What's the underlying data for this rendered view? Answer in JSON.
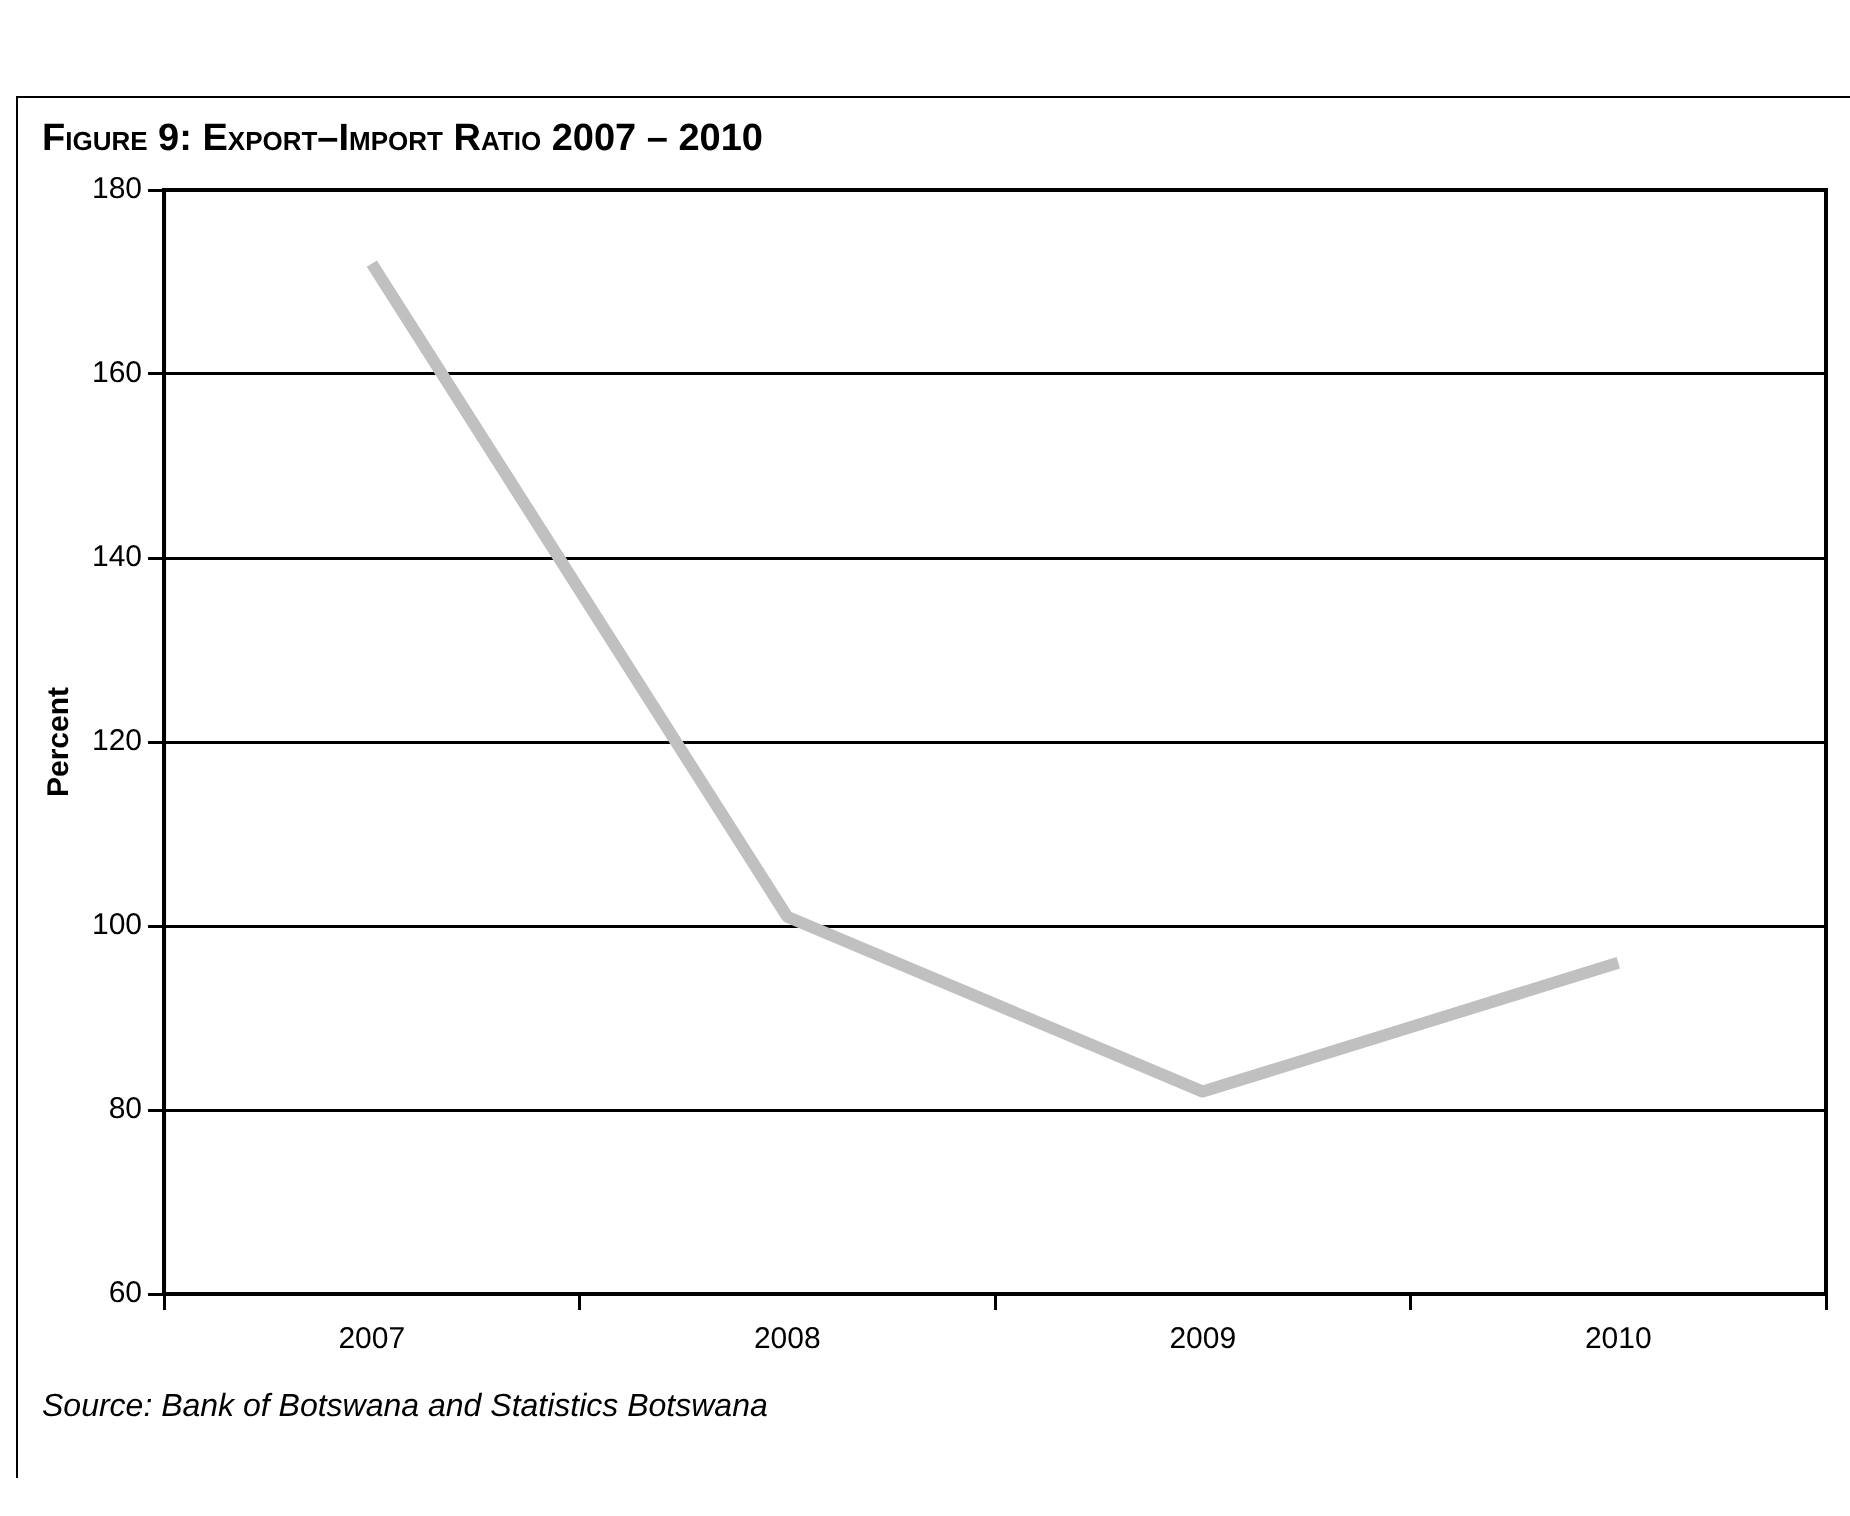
{
  "chart_data": {
    "type": "line",
    "title": "Figure 9: Export–Import Ratio 2007 – 2010",
    "ylabel": "Percent",
    "categories": [
      "2007",
      "2008",
      "2009",
      "2010"
    ],
    "series": [
      {
        "color": "#c0c0c0",
        "values": [
          172,
          101,
          82,
          96
        ]
      }
    ],
    "ylim": [
      60,
      180
    ],
    "yticks": [
      60,
      80,
      100,
      120,
      140,
      160,
      180
    ],
    "grid": "y",
    "line_style": "solid",
    "marker": "none",
    "annotations": [
      "Source: Bank of Botswana and Statistics Botswana"
    ]
  }
}
